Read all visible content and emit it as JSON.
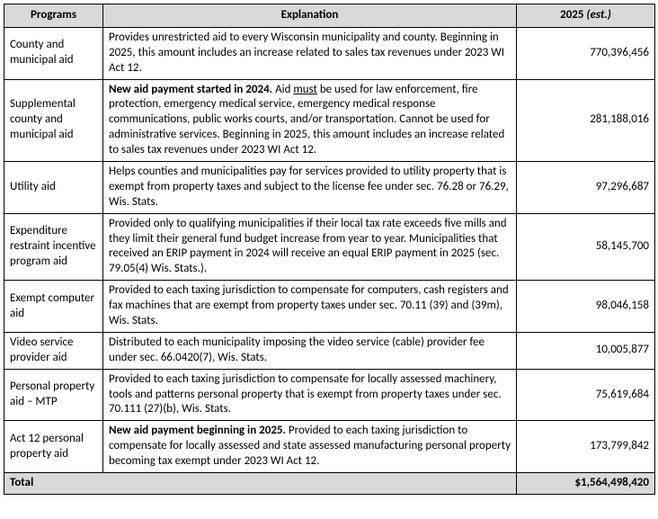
{
  "headers": {
    "programs": "Programs",
    "explanation": "Explanation",
    "year_label": "2025",
    "year_suffix": " (est.)"
  },
  "rows": [
    {
      "program": "County and municipal aid",
      "amount": "770,396,456",
      "expl_html": "Provides unrestricted aid to every Wisconsin municipality and county. Beginning in 2025, this amount includes an increase related to sales tax revenues under 2023 WI Act 12."
    },
    {
      "program": "Supplemental county and municipal aid",
      "amount": "281,188,016",
      "expl_html": "<span class=\"bold\">New aid payment started in 2024.</span> Aid <span class=\"underline\">must</span> be used for law enforcement, fire protection, emergency medical service, emergency medical response communications, public works courts, and/or transportation. Cannot be used for administrative services. Beginning in 2025, this amount includes an increase related to sales tax revenues under 2023 WI Act 12."
    },
    {
      "program": "Utility aid",
      "amount": "97,296,687",
      "expl_html": "Helps counties and municipalities pay for services provided to utility property that is exempt from property taxes and subject to the license fee under sec. 76.28 or 76.29, Wis. Stats."
    },
    {
      "program": "Expenditure restraint incentive program aid",
      "amount": "58,145,700",
      "expl_html": "Provided only to qualifying municipalities if their local tax rate exceeds five mills and they limit their general fund budget increase from year to year. Municipalities that received an ERIP payment in 2024 will receive an equal ERIP payment in 2025 (sec. 79.05(4) Wis. Stats.)."
    },
    {
      "program": "Exempt computer aid",
      "amount": "98,046,158",
      "expl_html": "Provided to each taxing jurisdiction to compensate for computers, cash registers and fax machines that are exempt from property taxes under sec. 70.11 (39) and (39m), Wis. Stats."
    },
    {
      "program": "Video service provider aid",
      "amount": "10,005,877",
      "expl_html": "Distributed to each municipality imposing the video service (cable) provider fee under sec. 66.0420(7), Wis. Stats."
    },
    {
      "program": "Personal property aid – MTP",
      "amount": "75,619,684",
      "expl_html": "Provided to each taxing jurisdiction to compensate for locally assessed machinery, tools and patterns personal property that is exempt from property taxes under sec. 70.111 (27)(b), Wis. Stats."
    },
    {
      "program": "Act 12 personal property aid",
      "amount": "173,799,842",
      "expl_html": "<span class=\"bold\">New aid payment beginning in 2025.</span> Provided to each taxing jurisdiction to compensate for locally assessed and state assessed manufacturing personal property becoming tax exempt under 2023 WI Act 12."
    }
  ],
  "total": {
    "label": "Total",
    "amount": "$1,564,498,420"
  }
}
